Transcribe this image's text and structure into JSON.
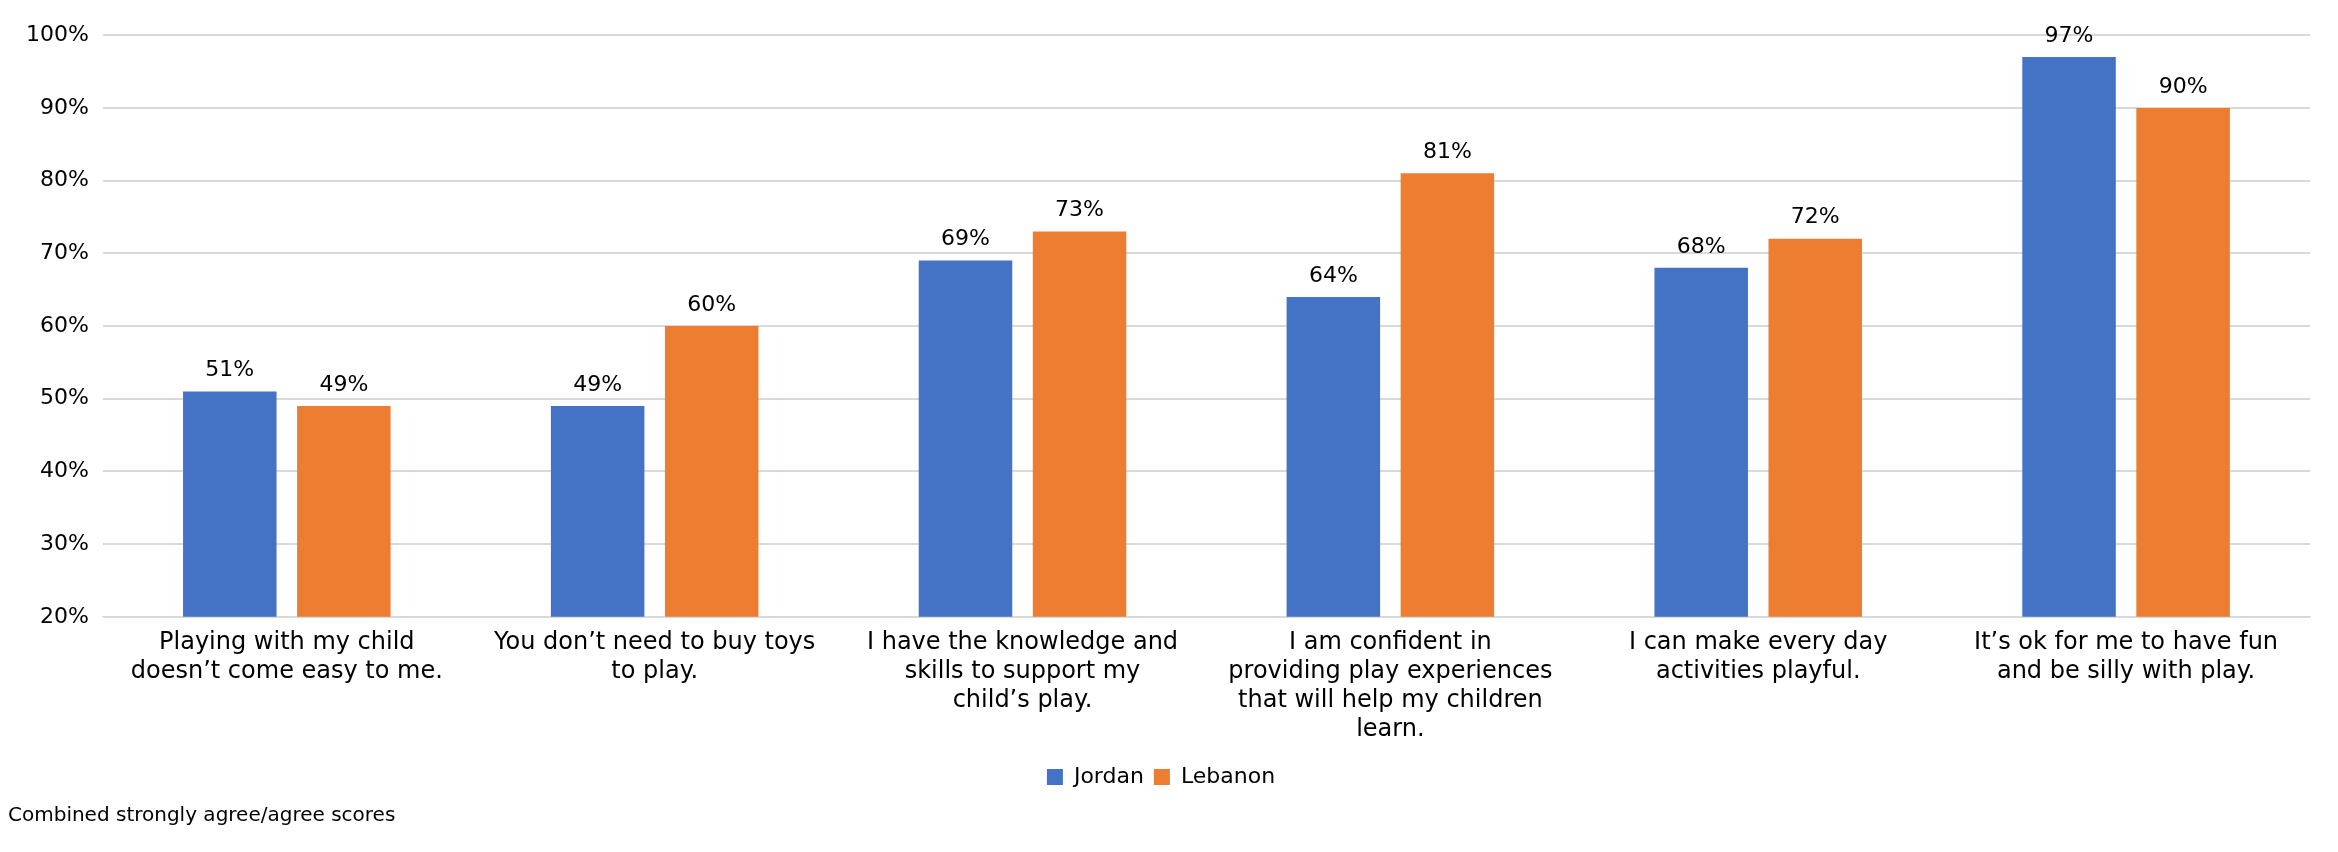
{
  "chart_data": {
    "type": "bar",
    "categories": [
      "Playing with my child doesn’t come easy to me.",
      "You don’t need to buy toys to play.",
      "I have the knowledge and skills to support my child’s play.",
      "I am confident in providing play experiences that will help my children learn.",
      "I can make every day activities playful.",
      "It’s ok for me to have fun and be silly with play."
    ],
    "series": [
      {
        "name": "Jordan",
        "color": "#4472c4",
        "values": [
          51,
          49,
          69,
          64,
          68,
          97
        ],
        "value_labels": [
          "51%",
          "49%",
          "69%",
          "64%",
          "68%",
          "97%"
        ]
      },
      {
        "name": "Lebanon",
        "color": "#ed7d31",
        "values": [
          49,
          60,
          73,
          81,
          72,
          90
        ],
        "value_labels": [
          "49%",
          "60%",
          "73%",
          "81%",
          "72%",
          "90%"
        ]
      }
    ],
    "ylim": [
      20,
      100
    ],
    "yticks": [
      {
        "value": 20,
        "label": "20%"
      },
      {
        "value": 30,
        "label": "30%"
      },
      {
        "value": 40,
        "label": "40%"
      },
      {
        "value": 50,
        "label": "50%"
      },
      {
        "value": 60,
        "label": "60%"
      },
      {
        "value": 70,
        "label": "70%"
      },
      {
        "value": 80,
        "label": "80%"
      },
      {
        "value": 90,
        "label": "90%"
      },
      {
        "value": 100,
        "label": "100%"
      }
    ],
    "grid": "y",
    "legend": "bottom",
    "annotations": [
      "Combined strongly agree/agree scores"
    ]
  }
}
